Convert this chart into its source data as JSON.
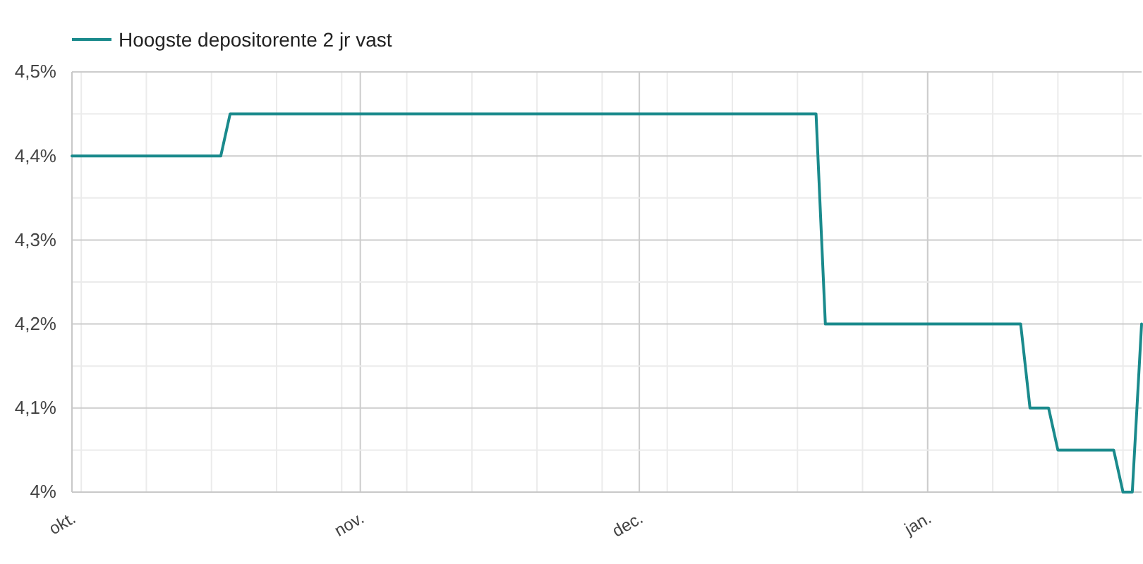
{
  "chart_data": {
    "type": "line",
    "categories": [
      "okt.",
      null,
      null,
      null,
      null,
      null,
      null,
      null,
      null,
      null,
      null,
      null,
      null,
      null,
      null,
      null,
      null,
      null,
      null,
      null,
      null,
      null,
      null,
      null,
      null,
      null,
      null,
      null,
      null,
      null,
      null,
      "nov.",
      null,
      null,
      null,
      null,
      null,
      null,
      null,
      null,
      null,
      null,
      null,
      null,
      null,
      null,
      null,
      null,
      null,
      null,
      null,
      null,
      null,
      null,
      null,
      null,
      null,
      null,
      null,
      null,
      null,
      "dec.",
      null,
      null,
      null,
      null,
      null,
      null,
      null,
      null,
      null,
      null,
      null,
      null,
      null,
      null,
      null,
      null,
      null,
      null,
      null,
      null,
      null,
      null,
      null,
      null,
      null,
      null,
      null,
      null,
      null,
      null,
      "jan.",
      null,
      null,
      null,
      null,
      null,
      null,
      null,
      null,
      null,
      null,
      null,
      null,
      null,
      null,
      null,
      null,
      null,
      null,
      null,
      null,
      null,
      null,
      null
    ],
    "series": [
      {
        "name": "Hoogste depositorente 2 jr vast",
        "color": "#1a8a8c",
        "values": [
          4.4,
          4.4,
          4.4,
          4.4,
          4.4,
          4.4,
          4.4,
          4.4,
          4.4,
          4.4,
          4.4,
          4.4,
          4.4,
          4.4,
          4.4,
          4.4,
          4.4,
          4.45,
          4.45,
          4.45,
          4.45,
          4.45,
          4.45,
          4.45,
          4.45,
          4.45,
          4.45,
          4.45,
          4.45,
          4.45,
          4.45,
          4.45,
          4.45,
          4.45,
          4.45,
          4.45,
          4.45,
          4.45,
          4.45,
          4.45,
          4.45,
          4.45,
          4.45,
          4.45,
          4.45,
          4.45,
          4.45,
          4.45,
          4.45,
          4.45,
          4.45,
          4.45,
          4.45,
          4.45,
          4.45,
          4.45,
          4.45,
          4.45,
          4.45,
          4.45,
          4.45,
          4.45,
          4.45,
          4.45,
          4.45,
          4.45,
          4.45,
          4.45,
          4.45,
          4.45,
          4.45,
          4.45,
          4.45,
          4.45,
          4.45,
          4.45,
          4.45,
          4.45,
          4.45,
          4.45,
          4.45,
          4.2,
          4.2,
          4.2,
          4.2,
          4.2,
          4.2,
          4.2,
          4.2,
          4.2,
          4.2,
          4.2,
          4.2,
          4.2,
          4.2,
          4.2,
          4.2,
          4.2,
          4.2,
          4.2,
          4.2,
          4.2,
          4.2,
          4.1,
          4.1,
          4.1,
          4.05,
          4.05,
          4.05,
          4.05,
          4.05,
          4.05,
          4.05,
          4.0,
          4.0,
          4.2
        ]
      }
    ],
    "ylim": [
      4.0,
      4.5
    ],
    "yticks": [
      {
        "value": 4.0,
        "label": "4%"
      },
      {
        "value": 4.1,
        "label": "4,1%"
      },
      {
        "value": 4.2,
        "label": "4,2%"
      },
      {
        "value": 4.3,
        "label": "4,3%"
      },
      {
        "value": 4.4,
        "label": "4,4%"
      },
      {
        "value": 4.5,
        "label": "4,5%"
      }
    ],
    "grid": true,
    "legend": "top left"
  }
}
